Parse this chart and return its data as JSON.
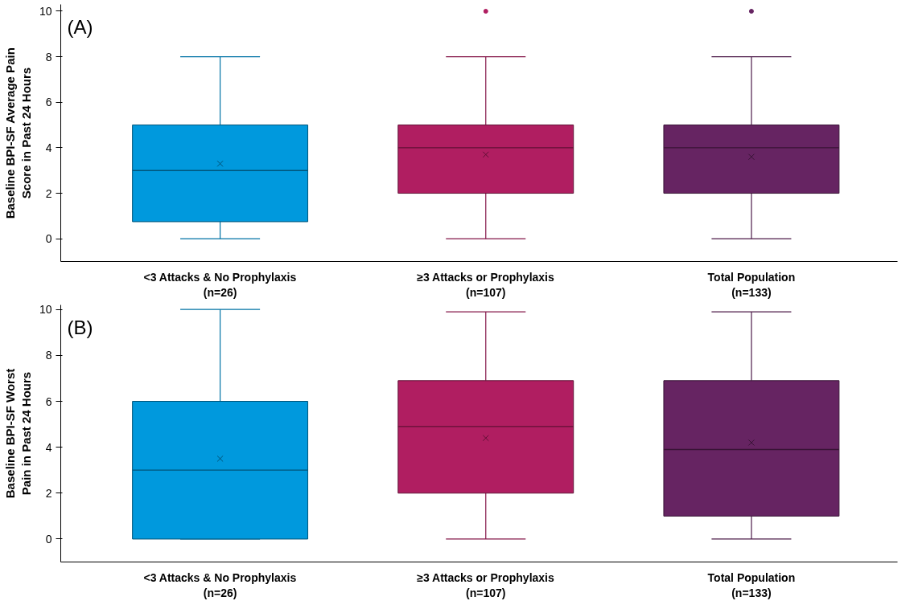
{
  "chart_data": [
    {
      "type": "box",
      "annotations": [
        "(A)"
      ],
      "ylabel": "Baseline BPI-SF Average Pain\nScore in Past 24 Hours",
      "categories": [
        "<3 Attacks & No Prophylaxis\n(n=26)",
        "≥3 Attacks or Prophylaxis\n(n=107)",
        "Total Population\n(n=133)"
      ],
      "colors": [
        "#0099dd",
        "#b01e61",
        "#662462"
      ],
      "boxes": [
        {
          "low": 0,
          "q1": 0.75,
          "median": 3,
          "q3": 5,
          "high": 8,
          "mean": 3.3
        },
        {
          "low": 0,
          "q1": 2,
          "median": 4,
          "q3": 5,
          "high": 8,
          "mean": 3.7,
          "outliers": [
            10
          ]
        },
        {
          "low": 0,
          "q1": 2,
          "median": 4,
          "q3": 5,
          "high": 8,
          "mean": 3.6,
          "outliers": [
            10
          ]
        }
      ],
      "ylim": [
        -1,
        10.3
      ],
      "yticks": [
        0,
        2,
        4,
        6,
        8,
        10
      ],
      "grid": false
    },
    {
      "type": "box",
      "annotations": [
        "(B)"
      ],
      "ylabel": "Baseline BPI-SF Worst\nPain in Past 24 Hours",
      "categories": [
        "<3 Attacks & No Prophylaxis\n(n=26)",
        "≥3 Attacks or Prophylaxis\n(n=107)",
        "Total Population\n(n=133)"
      ],
      "colors": [
        "#0099dd",
        "#b01e61",
        "#662462"
      ],
      "boxes": [
        {
          "low": 0,
          "q1": 0,
          "median": 3,
          "q3": 6,
          "high": 10,
          "mean": 3.5
        },
        {
          "low": 0,
          "q1": 2,
          "median": 4.9,
          "q3": 6.9,
          "high": 9.9,
          "mean": 4.4
        },
        {
          "low": 0,
          "q1": 1,
          "median": 3.9,
          "q3": 6.9,
          "high": 9.9,
          "mean": 4.2
        }
      ],
      "ylim": [
        -1,
        10.2
      ],
      "yticks": [
        0,
        2,
        4,
        6,
        8,
        10
      ],
      "grid": false
    }
  ]
}
